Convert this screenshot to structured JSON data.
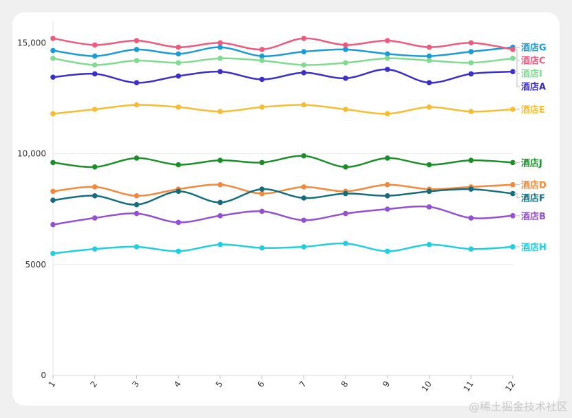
{
  "watermark": "@稀土掘金技术社区",
  "chart_data": {
    "type": "line",
    "x": [
      1,
      2,
      3,
      4,
      5,
      6,
      7,
      8,
      9,
      10,
      11,
      12
    ],
    "x_tick_labels": [
      "1",
      "2",
      "3",
      "4",
      "5",
      "6",
      "7",
      "8",
      "9",
      "10",
      "11",
      "12"
    ],
    "ylim": [
      0,
      16000
    ],
    "y_ticks": [
      0,
      5000,
      10000,
      15000
    ],
    "y_tick_labels": [
      "0",
      "5000",
      "10,000",
      "15,000"
    ],
    "grid": true,
    "curve": "smooth",
    "legend": "end-labels-right",
    "series": [
      {
        "name": "酒店G",
        "color": "#1a9bd7",
        "values": [
          14650,
          14400,
          14700,
          14500,
          14800,
          14400,
          14600,
          14700,
          14500,
          14400,
          14600,
          14800
        ]
      },
      {
        "name": "酒店C",
        "color": "#ee5a7e",
        "values": [
          15200,
          14900,
          15100,
          14800,
          15000,
          14700,
          15200,
          14900,
          15100,
          14800,
          15000,
          14700
        ]
      },
      {
        "name": "酒店I",
        "color": "#7fdc8f",
        "values": [
          14300,
          14000,
          14200,
          14100,
          14300,
          14200,
          14000,
          14100,
          14300,
          14200,
          14100,
          14300
        ]
      },
      {
        "name": "酒店A",
        "color": "#3b2fc9",
        "values": [
          13450,
          13600,
          13200,
          13500,
          13700,
          13350,
          13650,
          13400,
          13800,
          13200,
          13600,
          13700
        ]
      },
      {
        "name": "酒店E",
        "color": "#f6bd33",
        "values": [
          11800,
          12000,
          12200,
          12100,
          11900,
          12100,
          12200,
          12000,
          11800,
          12100,
          11900,
          12000
        ]
      },
      {
        "name": "酒店J",
        "color": "#1a8f28",
        "values": [
          9600,
          9400,
          9800,
          9500,
          9700,
          9600,
          9900,
          9400,
          9800,
          9500,
          9700,
          9600
        ]
      },
      {
        "name": "酒店D",
        "color": "#f4873a",
        "values": [
          8300,
          8500,
          8100,
          8400,
          8600,
          8200,
          8500,
          8300,
          8600,
          8400,
          8500,
          8600
        ]
      },
      {
        "name": "酒店F",
        "color": "#146c7c",
        "values": [
          7900,
          8100,
          7700,
          8300,
          7800,
          8400,
          8000,
          8200,
          8100,
          8300,
          8400,
          8200
        ]
      },
      {
        "name": "酒店B",
        "color": "#9350d3",
        "values": [
          6800,
          7100,
          7300,
          6900,
          7200,
          7400,
          7000,
          7300,
          7500,
          7600,
          7100,
          7200
        ]
      },
      {
        "name": "酒店H",
        "color": "#1fcfdf",
        "values": [
          5500,
          5700,
          5800,
          5600,
          5900,
          5750,
          5800,
          5950,
          5600,
          5900,
          5700,
          5800
        ]
      }
    ]
  }
}
